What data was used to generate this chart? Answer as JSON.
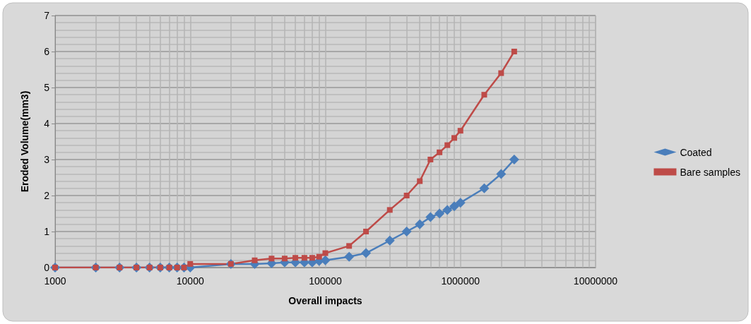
{
  "chart_data": {
    "type": "line",
    "xlabel": "Overall impacts",
    "ylabel": "Eroded Volume(mm3)",
    "x": [
      1000,
      2000,
      3000,
      4000,
      5000,
      6000,
      7000,
      8000,
      9000,
      10000,
      20000,
      30000,
      40000,
      50000,
      60000,
      70000,
      80000,
      90000,
      100000,
      150000,
      200000,
      300000,
      400000,
      500000,
      600000,
      700000,
      800000,
      900000,
      1000000,
      1500000,
      2000000,
      2500000
    ],
    "series": [
      {
        "name": "Coated",
        "color": "#4a7ebb",
        "marker": "diamond",
        "values": [
          0,
          0,
          0,
          0,
          0,
          0,
          0,
          0,
          0,
          0,
          0.1,
          0.1,
          0.12,
          0.14,
          0.14,
          0.14,
          0.14,
          0.18,
          0.2,
          0.3,
          0.4,
          0.75,
          1.0,
          1.2,
          1.4,
          1.5,
          1.6,
          1.7,
          1.8,
          2.2,
          2.6,
          3.0
        ]
      },
      {
        "name": "Bare samples",
        "color": "#be4b48",
        "marker": "square",
        "values": [
          0,
          0,
          0,
          0,
          0,
          0,
          0,
          0,
          0,
          0.1,
          0.1,
          0.2,
          0.25,
          0.25,
          0.27,
          0.27,
          0.27,
          0.3,
          0.4,
          0.6,
          1.0,
          1.6,
          2.0,
          2.4,
          3.0,
          3.2,
          3.4,
          3.6,
          3.8,
          4.8,
          5.4,
          6.0
        ]
      }
    ],
    "log": "x",
    "xlim": [
      1000,
      10000000
    ],
    "xticks": [
      1000,
      10000,
      100000,
      1000000,
      10000000
    ],
    "ylim": [
      0,
      7
    ],
    "yticks": [
      0,
      1,
      2,
      3,
      4,
      5,
      6,
      7
    ],
    "grid": true,
    "legend": "right"
  }
}
